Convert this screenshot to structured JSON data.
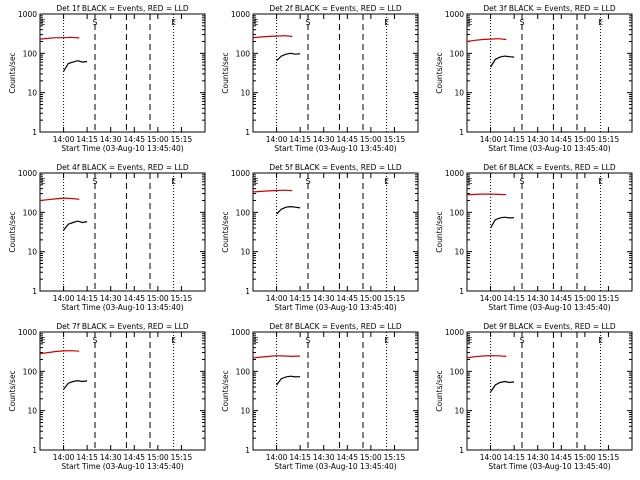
{
  "chart_data": [
    {
      "type": "line",
      "title": "Det 1f BLACK = Events, RED = LLD",
      "xlabel": "Start Time (03-Aug-10 13:45:40)",
      "ylabel": "Counts/sec",
      "ylim": [
        1,
        1000
      ],
      "yscale": "log",
      "xticks": [
        "14:00",
        "14:15",
        "14:30",
        "14:45",
        "15:00",
        "15:15"
      ],
      "yticks": [
        "1",
        "10",
        "100",
        "1000"
      ],
      "markers": [
        "S",
        "E",
        "E"
      ],
      "series": [
        {
          "name": "LLD",
          "color": "#cc0000",
          "x": [
            "13:45",
            "13:50",
            "13:55",
            "14:00",
            "14:05",
            "14:10"
          ],
          "values": [
            230,
            240,
            250,
            250,
            255,
            245
          ]
        },
        {
          "name": "Events",
          "color": "#000000",
          "x": [
            "14:00",
            "14:03",
            "14:06",
            "14:09",
            "14:12",
            "14:15"
          ],
          "values": [
            35,
            55,
            60,
            65,
            60,
            62
          ]
        }
      ]
    },
    {
      "type": "line",
      "title": "Det 2f BLACK = Events, RED = LLD",
      "xlabel": "Start Time (03-Aug-10 13:45:40)",
      "ylabel": "Counts/sec",
      "ylim": [
        1,
        1000
      ],
      "yscale": "log",
      "xticks": [
        "14:00",
        "14:15",
        "14:30",
        "14:45",
        "15:00",
        "15:15"
      ],
      "yticks": [
        "1",
        "10",
        "100",
        "1000"
      ],
      "markers": [
        "S",
        "E",
        "E"
      ],
      "series": [
        {
          "name": "LLD",
          "color": "#cc0000",
          "x": [
            "13:45",
            "13:50",
            "13:55",
            "14:00",
            "14:05",
            "14:10"
          ],
          "values": [
            250,
            260,
            270,
            275,
            280,
            270
          ]
        },
        {
          "name": "Events",
          "color": "#000000",
          "x": [
            "14:00",
            "14:03",
            "14:06",
            "14:09",
            "14:12",
            "14:15"
          ],
          "values": [
            65,
            85,
            95,
            100,
            95,
            98
          ]
        }
      ]
    },
    {
      "type": "line",
      "title": "Det 3f BLACK = Events, RED = LLD",
      "xlabel": "Start Time (03-Aug-10 13:45:40)",
      "ylabel": "Counts/sec",
      "ylim": [
        1,
        1000
      ],
      "yscale": "log",
      "xticks": [
        "14:00",
        "14:15",
        "14:30",
        "14:45",
        "15:00",
        "15:15"
      ],
      "yticks": [
        "1",
        "10",
        "100",
        "1000"
      ],
      "markers": [
        "S",
        "E",
        "E"
      ],
      "series": [
        {
          "name": "LLD",
          "color": "#cc0000",
          "x": [
            "13:45",
            "13:50",
            "13:55",
            "14:00",
            "14:05",
            "14:10"
          ],
          "values": [
            200,
            215,
            225,
            230,
            235,
            225
          ]
        },
        {
          "name": "Events",
          "color": "#000000",
          "x": [
            "14:00",
            "14:03",
            "14:06",
            "14:09",
            "14:12",
            "14:15"
          ],
          "values": [
            45,
            70,
            80,
            85,
            82,
            80
          ]
        }
      ]
    },
    {
      "type": "line",
      "title": "Det 4f BLACK = Events, RED = LLD",
      "xlabel": "Start Time (03-Aug-10 13:45:40)",
      "ylabel": "Counts/sec",
      "ylim": [
        1,
        1000
      ],
      "yscale": "log",
      "xticks": [
        "14:00",
        "14:15",
        "14:30",
        "14:45",
        "15:00",
        "15:15"
      ],
      "yticks": [
        "1",
        "10",
        "100",
        "1000"
      ],
      "markers": [
        "S",
        "E",
        "E"
      ],
      "series": [
        {
          "name": "LLD",
          "color": "#cc0000",
          "x": [
            "13:45",
            "13:50",
            "13:55",
            "14:00",
            "14:05",
            "14:10"
          ],
          "values": [
            200,
            210,
            220,
            230,
            225,
            215
          ]
        },
        {
          "name": "Events",
          "color": "#000000",
          "x": [
            "14:00",
            "14:03",
            "14:06",
            "14:09",
            "14:12",
            "14:15"
          ],
          "values": [
            35,
            50,
            55,
            60,
            55,
            58
          ]
        }
      ]
    },
    {
      "type": "line",
      "title": "Det 5f BLACK = Events, RED = LLD",
      "xlabel": "Start Time (03-Aug-10 13:45:40)",
      "ylabel": "Counts/sec",
      "ylim": [
        1,
        1000
      ],
      "yscale": "log",
      "xticks": [
        "14:00",
        "14:15",
        "14:30",
        "14:45",
        "15:00",
        "15:15"
      ],
      "yticks": [
        "1",
        "10",
        "100",
        "1000"
      ],
      "markers": [
        "S",
        "E",
        "E"
      ],
      "series": [
        {
          "name": "LLD",
          "color": "#cc0000",
          "x": [
            "13:45",
            "13:50",
            "13:55",
            "14:00",
            "14:05",
            "14:10"
          ],
          "values": [
            330,
            340,
            350,
            360,
            365,
            355
          ]
        },
        {
          "name": "Events",
          "color": "#000000",
          "x": [
            "14:00",
            "14:03",
            "14:06",
            "14:09",
            "14:12",
            "14:15"
          ],
          "values": [
            90,
            120,
            135,
            140,
            135,
            130
          ]
        }
      ]
    },
    {
      "type": "line",
      "title": "Det 6f BLACK = Events, RED = LLD",
      "xlabel": "Start Time (03-Aug-10 13:45:40)",
      "ylabel": "Counts/sec",
      "ylim": [
        1,
        1000
      ],
      "yscale": "log",
      "xticks": [
        "14:00",
        "14:15",
        "14:30",
        "14:45",
        "15:00",
        "15:15"
      ],
      "yticks": [
        "1",
        "10",
        "100",
        "1000"
      ],
      "markers": [
        "S",
        "E",
        "E"
      ],
      "series": [
        {
          "name": "LLD",
          "color": "#cc0000",
          "x": [
            "13:45",
            "13:50",
            "13:55",
            "14:00",
            "14:05",
            "14:10"
          ],
          "values": [
            280,
            285,
            290,
            290,
            285,
            280
          ]
        },
        {
          "name": "Events",
          "color": "#000000",
          "x": [
            "14:00",
            "14:03",
            "14:06",
            "14:09",
            "14:12",
            "14:15"
          ],
          "values": [
            40,
            65,
            72,
            75,
            72,
            73
          ]
        }
      ]
    },
    {
      "type": "line",
      "title": "Det 7f BLACK = Events, RED = LLD",
      "xlabel": "Start Time (03-Aug-10 13:45:40)",
      "ylabel": "Counts/sec",
      "ylim": [
        1,
        1000
      ],
      "yscale": "log",
      "xticks": [
        "14:00",
        "14:15",
        "14:30",
        "14:45",
        "15:00",
        "15:15"
      ],
      "yticks": [
        "1",
        "10",
        "100",
        "1000"
      ],
      "markers": [
        "S",
        "E",
        "E"
      ],
      "series": [
        {
          "name": "LLD",
          "color": "#cc0000",
          "x": [
            "13:45",
            "13:50",
            "13:55",
            "14:00",
            "14:05",
            "14:10"
          ],
          "values": [
            280,
            300,
            320,
            330,
            335,
            325
          ]
        },
        {
          "name": "Events",
          "color": "#000000",
          "x": [
            "14:00",
            "14:03",
            "14:06",
            "14:09",
            "14:12",
            "14:15"
          ],
          "values": [
            35,
            50,
            55,
            58,
            55,
            57
          ]
        }
      ]
    },
    {
      "type": "line",
      "title": "Det 8f BLACK = Events, RED = LLD",
      "xlabel": "Start Time (03-Aug-10 13:45:40)",
      "ylabel": "Counts/sec",
      "ylim": [
        1,
        1000
      ],
      "yscale": "log",
      "xticks": [
        "14:00",
        "14:15",
        "14:30",
        "14:45",
        "15:00",
        "15:15"
      ],
      "yticks": [
        "1",
        "10",
        "100",
        "1000"
      ],
      "markers": [
        "S",
        "E",
        "E"
      ],
      "series": [
        {
          "name": "LLD",
          "color": "#cc0000",
          "x": [
            "13:45",
            "13:50",
            "13:55",
            "14:00",
            "14:05",
            "14:10",
            "14:15"
          ],
          "values": [
            220,
            230,
            240,
            250,
            245,
            240,
            245
          ]
        },
        {
          "name": "Events",
          "color": "#000000",
          "x": [
            "14:00",
            "14:03",
            "14:06",
            "14:09",
            "14:12",
            "14:15"
          ],
          "values": [
            45,
            65,
            72,
            75,
            72,
            73
          ]
        }
      ]
    },
    {
      "type": "line",
      "title": "Det 9f BLACK = Events, RED = LLD",
      "xlabel": "Start Time (03-Aug-10 13:45:40)",
      "ylabel": "Counts/sec",
      "ylim": [
        1,
        1000
      ],
      "yscale": "log",
      "xticks": [
        "14:00",
        "14:15",
        "14:30",
        "14:45",
        "15:00",
        "15:15"
      ],
      "yticks": [
        "1",
        "10",
        "100",
        "1000"
      ],
      "markers": [
        "S",
        "E",
        "E"
      ],
      "series": [
        {
          "name": "LLD",
          "color": "#cc0000",
          "x": [
            "13:45",
            "13:50",
            "13:55",
            "14:00",
            "14:05",
            "14:10"
          ],
          "values": [
            220,
            235,
            245,
            250,
            248,
            240
          ]
        },
        {
          "name": "Events",
          "color": "#000000",
          "x": [
            "14:00",
            "14:03",
            "14:06",
            "14:09",
            "14:12",
            "14:15"
          ],
          "values": [
            30,
            45,
            52,
            55,
            52,
            54
          ]
        }
      ]
    }
  ]
}
